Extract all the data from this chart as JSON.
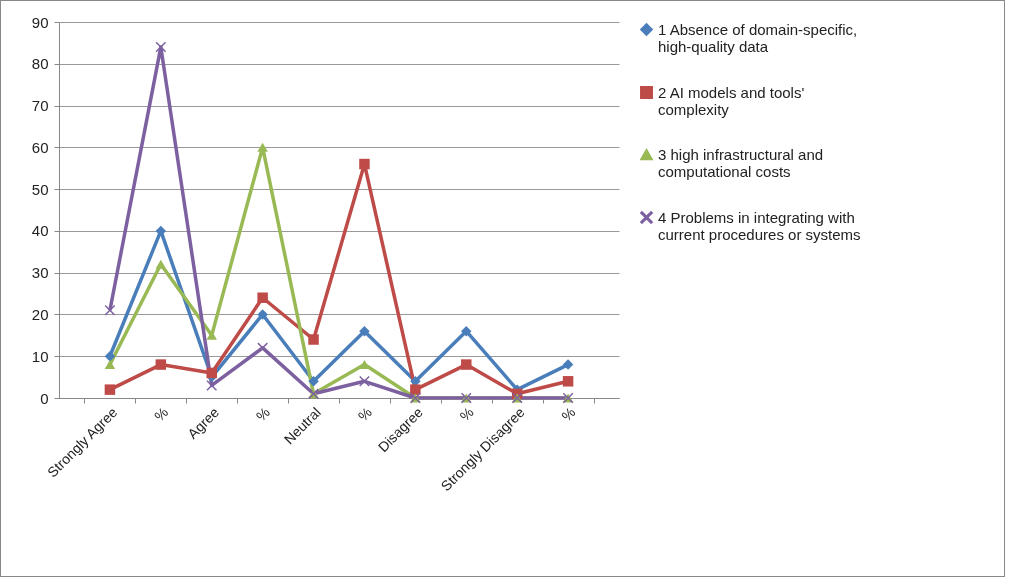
{
  "chart_data": {
    "type": "line",
    "categories": [
      "Strongly Agree",
      "%",
      "Agree",
      "%",
      "Neutral",
      "%",
      "Disagree",
      "%",
      "Strongly Disagree",
      "%"
    ],
    "series": [
      {
        "name": "1 Absence of domain-specific, high-quality data",
        "color": "#4a7ebb",
        "marker": "diamond",
        "values": [
          10,
          40,
          5,
          20,
          4,
          16,
          4,
          16,
          2,
          8
        ]
      },
      {
        "name": "2 AI models and tools' complexity",
        "color": "#be4b48",
        "marker": "square",
        "values": [
          2,
          8,
          6,
          24,
          14,
          56,
          2,
          8,
          1,
          4
        ]
      },
      {
        "name": "3 high infrastructural and computational costs",
        "color": "#98b954",
        "marker": "triangle",
        "values": [
          8,
          32,
          15,
          60,
          1,
          8,
          0,
          0,
          0,
          0
        ]
      },
      {
        "name": "4 Problems in integrating with current procedures or systems",
        "color": "#7d60a0",
        "marker": "cross",
        "values": [
          21,
          84,
          3,
          12,
          1,
          4,
          0,
          0,
          0,
          0
        ]
      }
    ],
    "ylim": [
      0,
      90
    ],
    "yticks": [
      0,
      10,
      20,
      30,
      40,
      50,
      60,
      70,
      80,
      90
    ],
    "grid": "y",
    "legend": "right",
    "line_style": "solid"
  }
}
